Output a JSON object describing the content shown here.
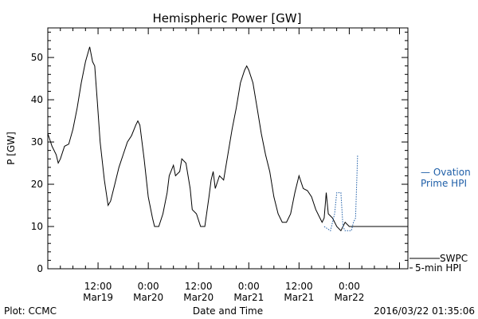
{
  "chart_data": {
    "type": "line",
    "title": "Hemispheric Power [GW]",
    "xlabel": "Date and Time",
    "ylabel": "P [GW]",
    "ylim": [
      0,
      57
    ],
    "yticks": [
      0,
      10,
      20,
      30,
      40,
      50
    ],
    "xlim_hours": [
      0,
      86
    ],
    "xticks": [
      {
        "hour": 12,
        "time": "12:00",
        "date": "Mar19"
      },
      {
        "hour": 24,
        "time": "0:00",
        "date": "Mar20"
      },
      {
        "hour": 36,
        "time": "12:00",
        "date": "Mar20"
      },
      {
        "hour": 48,
        "time": "0:00",
        "date": "Mar21"
      },
      {
        "hour": 60,
        "time": "12:00",
        "date": "Mar21"
      },
      {
        "hour": 72,
        "time": "0:00",
        "date": "Mar22"
      }
    ],
    "series": [
      {
        "name": "SWPC 5-min HPI",
        "style": "solid",
        "color": "#000000",
        "points": [
          [
            0,
            32
          ],
          [
            1,
            29
          ],
          [
            2,
            27
          ],
          [
            2.5,
            25
          ],
          [
            3,
            26
          ],
          [
            4,
            29
          ],
          [
            5,
            29.5
          ],
          [
            6,
            33
          ],
          [
            7,
            38
          ],
          [
            8,
            44
          ],
          [
            9,
            49
          ],
          [
            10,
            52.5
          ],
          [
            10.7,
            49
          ],
          [
            11.2,
            48
          ],
          [
            11.8,
            40
          ],
          [
            12.5,
            30
          ],
          [
            13.5,
            21
          ],
          [
            14.4,
            15
          ],
          [
            15,
            16
          ],
          [
            16,
            20
          ],
          [
            17,
            24
          ],
          [
            18,
            27
          ],
          [
            19,
            30
          ],
          [
            20,
            31.5
          ],
          [
            21,
            34
          ],
          [
            21.5,
            35
          ],
          [
            22,
            34
          ],
          [
            23,
            26
          ],
          [
            24,
            17
          ],
          [
            25,
            12
          ],
          [
            25.5,
            10
          ],
          [
            26.5,
            10
          ],
          [
            27.5,
            13
          ],
          [
            28.5,
            18
          ],
          [
            29,
            22
          ],
          [
            30,
            24.5
          ],
          [
            30.5,
            22
          ],
          [
            31.5,
            23
          ],
          [
            32,
            26
          ],
          [
            33,
            25
          ],
          [
            34,
            19
          ],
          [
            34.5,
            14
          ],
          [
            35.5,
            13
          ],
          [
            36.5,
            10
          ],
          [
            37.5,
            10
          ],
          [
            38.5,
            17
          ],
          [
            39,
            21
          ],
          [
            39.5,
            23
          ],
          [
            40,
            19
          ],
          [
            41,
            22
          ],
          [
            42,
            21
          ],
          [
            43,
            27
          ],
          [
            44,
            33
          ],
          [
            45,
            38
          ],
          [
            46,
            44
          ],
          [
            47,
            47
          ],
          [
            47.5,
            48
          ],
          [
            48,
            47
          ],
          [
            49,
            44
          ],
          [
            50,
            38
          ],
          [
            51,
            32
          ],
          [
            52,
            27
          ],
          [
            53,
            23
          ],
          [
            54,
            17
          ],
          [
            55,
            13
          ],
          [
            56,
            11
          ],
          [
            57,
            11
          ],
          [
            58,
            13
          ],
          [
            59,
            18
          ],
          [
            60,
            22
          ],
          [
            61,
            19
          ],
          [
            62,
            18.5
          ],
          [
            63,
            17
          ],
          [
            64,
            14
          ],
          [
            65,
            12
          ],
          [
            65.5,
            11
          ],
          [
            66,
            12
          ],
          [
            66.5,
            18
          ],
          [
            67,
            13
          ],
          [
            68,
            12
          ],
          [
            69,
            10
          ],
          [
            70,
            9
          ],
          [
            71,
            11
          ],
          [
            72,
            10
          ],
          [
            73,
            10
          ],
          [
            74,
            10
          ],
          [
            75,
            10
          ],
          [
            76,
            10
          ],
          [
            77,
            10
          ],
          [
            78,
            10
          ],
          [
            79,
            10
          ],
          [
            80,
            10
          ],
          [
            81,
            10
          ],
          [
            82,
            10
          ],
          [
            83,
            10
          ],
          [
            84,
            10
          ],
          [
            85,
            10
          ],
          [
            86,
            10
          ]
        ]
      },
      {
        "name": "Ovation Prime HPI",
        "style": "dotted",
        "color": "#1f5fa8",
        "points": [
          [
            66,
            10
          ],
          [
            67.5,
            9
          ],
          [
            68.5,
            13
          ],
          [
            69,
            18
          ],
          [
            70,
            18
          ],
          [
            70.5,
            10
          ],
          [
            71,
            9
          ],
          [
            72.5,
            9
          ],
          [
            73,
            11
          ],
          [
            73.5,
            12
          ],
          [
            74,
            27
          ]
        ]
      }
    ],
    "legend": [
      {
        "line1": "— Ovation",
        "line2": "Prime HPI",
        "color": "#1f5fa8"
      },
      {
        "line1": "SWPC",
        "line2": "5-min HPI",
        "color": "#000000"
      }
    ]
  },
  "footer": {
    "plot_credit": "Plot: CCMC",
    "xaxis_title": "Date and Time",
    "timestamp": "2016/03/22 01:35:06"
  }
}
